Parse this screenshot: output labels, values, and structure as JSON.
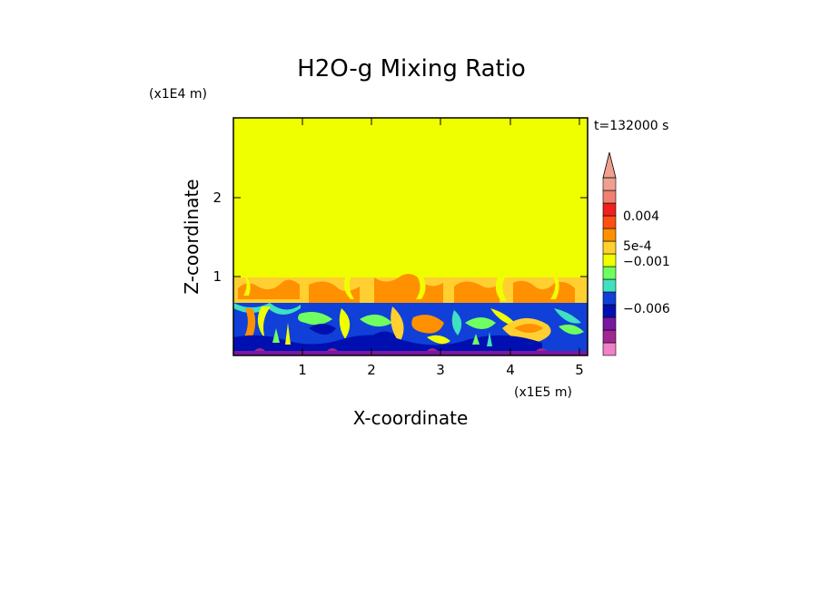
{
  "chart_data": {
    "type": "heatmap",
    "title": "H2O-g Mixing Ratio",
    "xlabel": "X-coordinate",
    "ylabel": "Z-coordinate",
    "x_scale_label": "(x1E5 m)",
    "y_scale_label": "(x1E4 m)",
    "time_label": "t=132000 s",
    "x_ticks": [
      "1",
      "2",
      "3",
      "4",
      "5"
    ],
    "y_ticks": [
      "1",
      "2"
    ],
    "xlim": [
      0.0,
      5.1
    ],
    "ylim": [
      0.0,
      3.0
    ],
    "fields": {
      "upper_layer": {
        "z_range": [
          1.05,
          3.0
        ],
        "value_band": "5e-4"
      },
      "mixed_layer": {
        "z_range": [
          0.72,
          1.05
        ],
        "value_band": "5e-4 to 0.004"
      },
      "boundary_layer": {
        "z_range": [
          0.0,
          0.72
        ],
        "value_band": "-0.006 to 0.004"
      }
    },
    "colorbar": {
      "tick_labels": [
        "0.004",
        "5e-4",
        "−0.001",
        "−0.006"
      ],
      "levels": [
        {
          "color": "#f080c8"
        },
        {
          "color": "#a02890"
        },
        {
          "color": "#7818a0"
        },
        {
          "color": "#0010b0"
        },
        {
          "color": "#1040d8"
        },
        {
          "color": "#40e0c0"
        },
        {
          "color": "#70ff60"
        },
        {
          "color": "#f0ff00"
        },
        {
          "color": "#ffd030"
        },
        {
          "color": "#ff9000"
        },
        {
          "color": "#ff5010"
        },
        {
          "color": "#f02020"
        },
        {
          "color": "#f08070"
        },
        {
          "color": "#f0a090"
        }
      ],
      "extend": "max"
    }
  }
}
